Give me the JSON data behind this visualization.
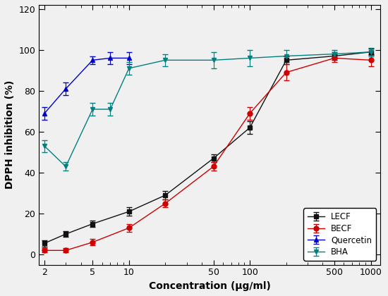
{
  "title": "",
  "xlabel": "Concentration (μg/ml)",
  "ylabel": "DPPH inhibition (%)",
  "ylim": [
    -5,
    122
  ],
  "xlim_log": [
    1.8,
    1200
  ],
  "background_color": "#f0f0f0",
  "LECF": {
    "x": [
      2,
      3,
      5,
      10,
      20,
      50,
      100,
      200,
      500,
      1000
    ],
    "y": [
      5.5,
      10,
      15,
      21,
      29,
      47,
      62,
      95,
      97,
      99
    ],
    "yerr": [
      1.5,
      1.5,
      1.5,
      2,
      2,
      2,
      3,
      2,
      2,
      1.5
    ],
    "color": "#111111",
    "marker": "s",
    "label": "LECF"
  },
  "BECF": {
    "x": [
      2,
      3,
      5,
      10,
      20,
      50,
      100,
      200,
      500,
      1000
    ],
    "y": [
      2,
      2,
      6,
      13,
      25,
      43,
      69,
      89,
      96,
      95
    ],
    "yerr": [
      1,
      1,
      1.5,
      2,
      2,
      2,
      3,
      4,
      2,
      3
    ],
    "color": "#cc0000",
    "marker": "o",
    "label": "BECF"
  },
  "Quercetin": {
    "x": [
      2,
      3,
      5,
      7,
      10
    ],
    "y": [
      69,
      81,
      95,
      96,
      96
    ],
    "yerr": [
      3,
      3,
      2,
      3,
      3
    ],
    "color": "#0000cc",
    "marker": "^",
    "label": "Quercetin"
  },
  "BHA": {
    "x": [
      2,
      3,
      5,
      7,
      10,
      20,
      50,
      100,
      200,
      500,
      1000
    ],
    "y": [
      53,
      43,
      71,
      71,
      91,
      95,
      95,
      96,
      97,
      98,
      99
    ],
    "yerr": [
      3,
      2,
      3,
      3,
      3,
      3,
      4,
      4,
      3,
      2,
      2
    ],
    "color": "#008080",
    "marker": "v",
    "label": "BHA"
  },
  "legend_loc": "lower right",
  "grid": false,
  "markersize": 5,
  "linewidth": 1.0,
  "capsize": 3,
  "elinewidth": 0.8,
  "yticks": [
    0,
    20,
    40,
    60,
    80,
    100,
    120
  ],
  "xticks": [
    2,
    5,
    10,
    50,
    100,
    500,
    1000
  ],
  "xticklabels": [
    "2",
    "5",
    "10",
    "50",
    "100",
    "500",
    "1000"
  ]
}
